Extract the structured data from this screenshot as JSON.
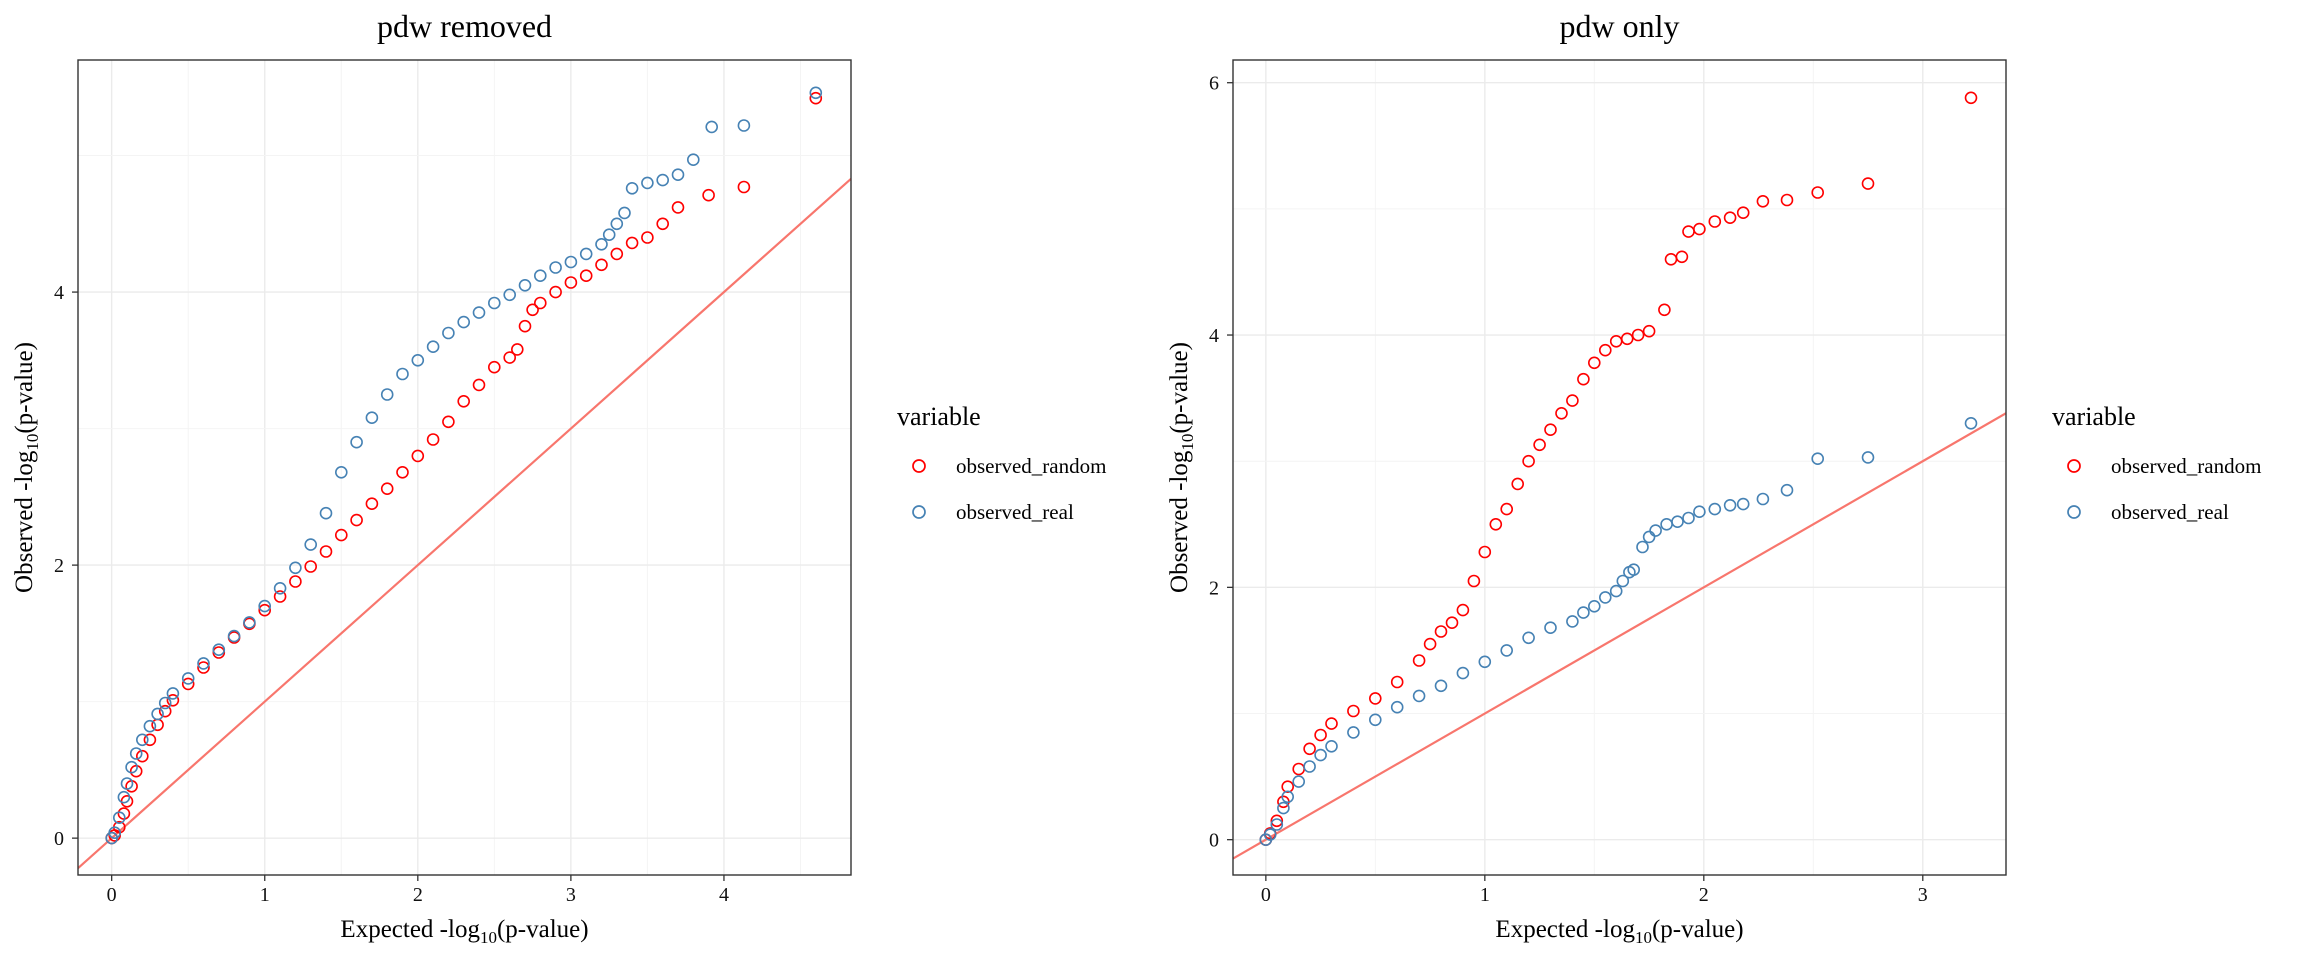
{
  "chart_data": [
    {
      "type": "scatter",
      "title": "pdw removed",
      "xlabel": {
        "prefix": "Expected -log",
        "sub": "10",
        "suffix": "(p-value)"
      },
      "ylabel": {
        "prefix": "Observed -log",
        "sub": "10",
        "suffix": "(p-value)"
      },
      "xlim": [
        -0.22,
        4.83
      ],
      "ylim": [
        -0.27,
        5.7
      ],
      "xticks": [
        0,
        1,
        2,
        3,
        4
      ],
      "yticks": [
        0,
        2,
        4
      ],
      "grid": true,
      "reference_line": {
        "intercept": 0,
        "slope": 1,
        "color": "#f8766d"
      },
      "legend": {
        "title": "variable",
        "position": "right",
        "entries": [
          {
            "label": "observed_random",
            "color": "#ff0000"
          },
          {
            "label": "observed_real",
            "color": "#4682b4"
          }
        ]
      },
      "series": [
        {
          "name": "observed_random",
          "color": "#ff0000",
          "points": [
            [
              0,
              0
            ],
            [
              0.02,
              0.02
            ],
            [
              0.05,
              0.08
            ],
            [
              0.08,
              0.18
            ],
            [
              0.1,
              0.27
            ],
            [
              0.13,
              0.38
            ],
            [
              0.16,
              0.49
            ],
            [
              0.2,
              0.6
            ],
            [
              0.25,
              0.72
            ],
            [
              0.3,
              0.83
            ],
            [
              0.35,
              0.93
            ],
            [
              0.4,
              1.01
            ],
            [
              0.5,
              1.13
            ],
            [
              0.6,
              1.25
            ],
            [
              0.7,
              1.36
            ],
            [
              0.8,
              1.47
            ],
            [
              0.9,
              1.57
            ],
            [
              1.0,
              1.67
            ],
            [
              1.1,
              1.77
            ],
            [
              1.2,
              1.88
            ],
            [
              1.3,
              1.99
            ],
            [
              1.4,
              2.1
            ],
            [
              1.5,
              2.22
            ],
            [
              1.6,
              2.33
            ],
            [
              1.7,
              2.45
            ],
            [
              1.8,
              2.56
            ],
            [
              1.9,
              2.68
            ],
            [
              2.0,
              2.8
            ],
            [
              2.1,
              2.92
            ],
            [
              2.2,
              3.05
            ],
            [
              2.3,
              3.2
            ],
            [
              2.4,
              3.32
            ],
            [
              2.5,
              3.45
            ],
            [
              2.6,
              3.52
            ],
            [
              2.65,
              3.58
            ],
            [
              2.7,
              3.75
            ],
            [
              2.75,
              3.87
            ],
            [
              2.8,
              3.92
            ],
            [
              2.9,
              4.0
            ],
            [
              3.0,
              4.07
            ],
            [
              3.1,
              4.12
            ],
            [
              3.2,
              4.2
            ],
            [
              3.3,
              4.28
            ],
            [
              3.4,
              4.36
            ],
            [
              3.5,
              4.4
            ],
            [
              3.6,
              4.5
            ],
            [
              3.7,
              4.62
            ],
            [
              3.9,
              4.71
            ],
            [
              4.13,
              4.77
            ],
            [
              4.6,
              5.42
            ]
          ]
        },
        {
          "name": "observed_real",
          "color": "#4682b4",
          "points": [
            [
              0,
              0
            ],
            [
              0.02,
              0.04
            ],
            [
              0.05,
              0.15
            ],
            [
              0.08,
              0.3
            ],
            [
              0.1,
              0.4
            ],
            [
              0.13,
              0.52
            ],
            [
              0.16,
              0.62
            ],
            [
              0.2,
              0.72
            ],
            [
              0.25,
              0.82
            ],
            [
              0.3,
              0.91
            ],
            [
              0.35,
              0.99
            ],
            [
              0.4,
              1.06
            ],
            [
              0.5,
              1.17
            ],
            [
              0.6,
              1.28
            ],
            [
              0.7,
              1.38
            ],
            [
              0.8,
              1.48
            ],
            [
              0.9,
              1.58
            ],
            [
              1.0,
              1.7
            ],
            [
              1.1,
              1.83
            ],
            [
              1.2,
              1.98
            ],
            [
              1.3,
              2.15
            ],
            [
              1.4,
              2.38
            ],
            [
              1.5,
              2.68
            ],
            [
              1.6,
              2.9
            ],
            [
              1.7,
              3.08
            ],
            [
              1.8,
              3.25
            ],
            [
              1.9,
              3.4
            ],
            [
              2.0,
              3.5
            ],
            [
              2.1,
              3.6
            ],
            [
              2.2,
              3.7
            ],
            [
              2.3,
              3.78
            ],
            [
              2.4,
              3.85
            ],
            [
              2.5,
              3.92
            ],
            [
              2.6,
              3.98
            ],
            [
              2.7,
              4.05
            ],
            [
              2.8,
              4.12
            ],
            [
              2.9,
              4.18
            ],
            [
              3.0,
              4.22
            ],
            [
              3.1,
              4.28
            ],
            [
              3.2,
              4.35
            ],
            [
              3.25,
              4.42
            ],
            [
              3.3,
              4.5
            ],
            [
              3.35,
              4.58
            ],
            [
              3.4,
              4.76
            ],
            [
              3.5,
              4.8
            ],
            [
              3.6,
              4.82
            ],
            [
              3.7,
              4.86
            ],
            [
              3.8,
              4.97
            ],
            [
              3.92,
              5.21
            ],
            [
              4.13,
              5.22
            ],
            [
              4.6,
              5.46
            ]
          ]
        }
      ]
    },
    {
      "type": "scatter",
      "title": "pdw only",
      "xlabel": {
        "prefix": "Expected -log",
        "sub": "10",
        "suffix": "(p-value)"
      },
      "ylabel": {
        "prefix": "Observed -log",
        "sub": "10",
        "suffix": "(p-value)"
      },
      "xlim": [
        -0.15,
        3.38
      ],
      "ylim": [
        -0.28,
        6.18
      ],
      "xticks": [
        0,
        1,
        2,
        3
      ],
      "yticks": [
        0,
        2,
        4,
        6
      ],
      "grid": true,
      "reference_line": {
        "intercept": 0,
        "slope": 1,
        "color": "#f8766d"
      },
      "legend": {
        "title": "variable",
        "position": "right",
        "entries": [
          {
            "label": "observed_random",
            "color": "#ff0000"
          },
          {
            "label": "observed_real",
            "color": "#4682b4"
          }
        ]
      },
      "series": [
        {
          "name": "observed_random",
          "color": "#ff0000",
          "points": [
            [
              0,
              0
            ],
            [
              0.02,
              0.05
            ],
            [
              0.05,
              0.15
            ],
            [
              0.08,
              0.3
            ],
            [
              0.1,
              0.42
            ],
            [
              0.15,
              0.56
            ],
            [
              0.2,
              0.72
            ],
            [
              0.25,
              0.83
            ],
            [
              0.3,
              0.92
            ],
            [
              0.4,
              1.02
            ],
            [
              0.5,
              1.12
            ],
            [
              0.6,
              1.25
            ],
            [
              0.7,
              1.42
            ],
            [
              0.75,
              1.55
            ],
            [
              0.8,
              1.65
            ],
            [
              0.85,
              1.72
            ],
            [
              0.9,
              1.82
            ],
            [
              0.95,
              2.05
            ],
            [
              1.0,
              2.28
            ],
            [
              1.05,
              2.5
            ],
            [
              1.1,
              2.62
            ],
            [
              1.15,
              2.82
            ],
            [
              1.2,
              3.0
            ],
            [
              1.25,
              3.13
            ],
            [
              1.3,
              3.25
            ],
            [
              1.35,
              3.38
            ],
            [
              1.4,
              3.48
            ],
            [
              1.45,
              3.65
            ],
            [
              1.5,
              3.78
            ],
            [
              1.55,
              3.88
            ],
            [
              1.6,
              3.95
            ],
            [
              1.65,
              3.97
            ],
            [
              1.7,
              4.0
            ],
            [
              1.75,
              4.03
            ],
            [
              1.82,
              4.2
            ],
            [
              1.85,
              4.6
            ],
            [
              1.9,
              4.62
            ],
            [
              1.93,
              4.82
            ],
            [
              1.98,
              4.84
            ],
            [
              2.05,
              4.9
            ],
            [
              2.12,
              4.93
            ],
            [
              2.18,
              4.97
            ],
            [
              2.27,
              5.06
            ],
            [
              2.38,
              5.07
            ],
            [
              2.52,
              5.13
            ],
            [
              2.75,
              5.2
            ],
            [
              3.22,
              5.88
            ]
          ]
        },
        {
          "name": "observed_real",
          "color": "#4682b4",
          "points": [
            [
              0,
              0
            ],
            [
              0.02,
              0.04
            ],
            [
              0.05,
              0.12
            ],
            [
              0.08,
              0.25
            ],
            [
              0.1,
              0.34
            ],
            [
              0.15,
              0.46
            ],
            [
              0.2,
              0.58
            ],
            [
              0.25,
              0.67
            ],
            [
              0.3,
              0.74
            ],
            [
              0.4,
              0.85
            ],
            [
              0.5,
              0.95
            ],
            [
              0.6,
              1.05
            ],
            [
              0.7,
              1.14
            ],
            [
              0.8,
              1.22
            ],
            [
              0.9,
              1.32
            ],
            [
              1.0,
              1.41
            ],
            [
              1.1,
              1.5
            ],
            [
              1.2,
              1.6
            ],
            [
              1.3,
              1.68
            ],
            [
              1.4,
              1.73
            ],
            [
              1.45,
              1.8
            ],
            [
              1.5,
              1.85
            ],
            [
              1.55,
              1.92
            ],
            [
              1.6,
              1.97
            ],
            [
              1.63,
              2.05
            ],
            [
              1.66,
              2.12
            ],
            [
              1.68,
              2.14
            ],
            [
              1.72,
              2.32
            ],
            [
              1.75,
              2.4
            ],
            [
              1.78,
              2.45
            ],
            [
              1.83,
              2.5
            ],
            [
              1.88,
              2.52
            ],
            [
              1.93,
              2.55
            ],
            [
              1.98,
              2.6
            ],
            [
              2.05,
              2.62
            ],
            [
              2.12,
              2.65
            ],
            [
              2.18,
              2.66
            ],
            [
              2.27,
              2.7
            ],
            [
              2.38,
              2.77
            ],
            [
              2.52,
              3.02
            ],
            [
              2.75,
              3.03
            ],
            [
              3.22,
              3.3
            ]
          ]
        }
      ]
    }
  ]
}
